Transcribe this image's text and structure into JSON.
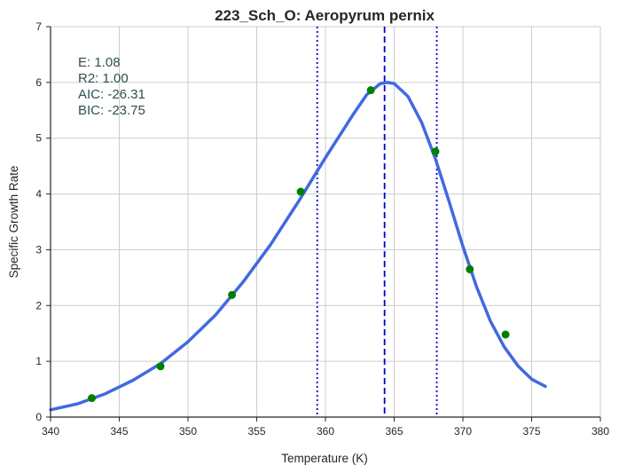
{
  "chart_data": {
    "type": "scatter",
    "title": "223_Sch_O: Aeropyrum pernix",
    "xlabel": "Temperature (K)",
    "ylabel": "Specific Growth Rate",
    "xlim": [
      340,
      380
    ],
    "ylim": [
      0,
      7
    ],
    "xticks": [
      340,
      345,
      350,
      355,
      360,
      365,
      370,
      375,
      380
    ],
    "yticks": [
      0,
      1,
      2,
      3,
      4,
      5,
      6,
      7
    ],
    "grid": true,
    "annotations": [
      "E:  1.08",
      "R2:  1.00",
      "AIC: -26.31",
      "BIC: -23.75"
    ],
    "points": {
      "color": "#008000",
      "x": [
        343.0,
        348.0,
        353.2,
        358.2,
        363.3,
        368.0,
        370.5,
        373.1
      ],
      "y": [
        0.34,
        0.91,
        2.19,
        4.04,
        5.86,
        4.76,
        2.65,
        1.48
      ]
    },
    "fit_curve": {
      "color": "#4169e1",
      "x": [
        340,
        342,
        344,
        346,
        348,
        350,
        352,
        354,
        356,
        358,
        360,
        362,
        363,
        364,
        364.5,
        365,
        366,
        367,
        368,
        369,
        370,
        371,
        372,
        373,
        374,
        375,
        376
      ],
      "y": [
        0.13,
        0.24,
        0.42,
        0.66,
        0.96,
        1.35,
        1.83,
        2.42,
        3.09,
        3.85,
        4.65,
        5.42,
        5.78,
        5.98,
        6.0,
        5.98,
        5.75,
        5.28,
        4.63,
        3.86,
        3.06,
        2.33,
        1.72,
        1.26,
        0.92,
        0.68,
        0.55
      ]
    },
    "vlines": [
      {
        "x": 364.3,
        "style": "dashed",
        "color": "#0000cd"
      },
      {
        "x": 359.4,
        "style": "dotted",
        "color": "#0000cd"
      },
      {
        "x": 368.1,
        "style": "dotted",
        "color": "#0000cd"
      }
    ]
  }
}
